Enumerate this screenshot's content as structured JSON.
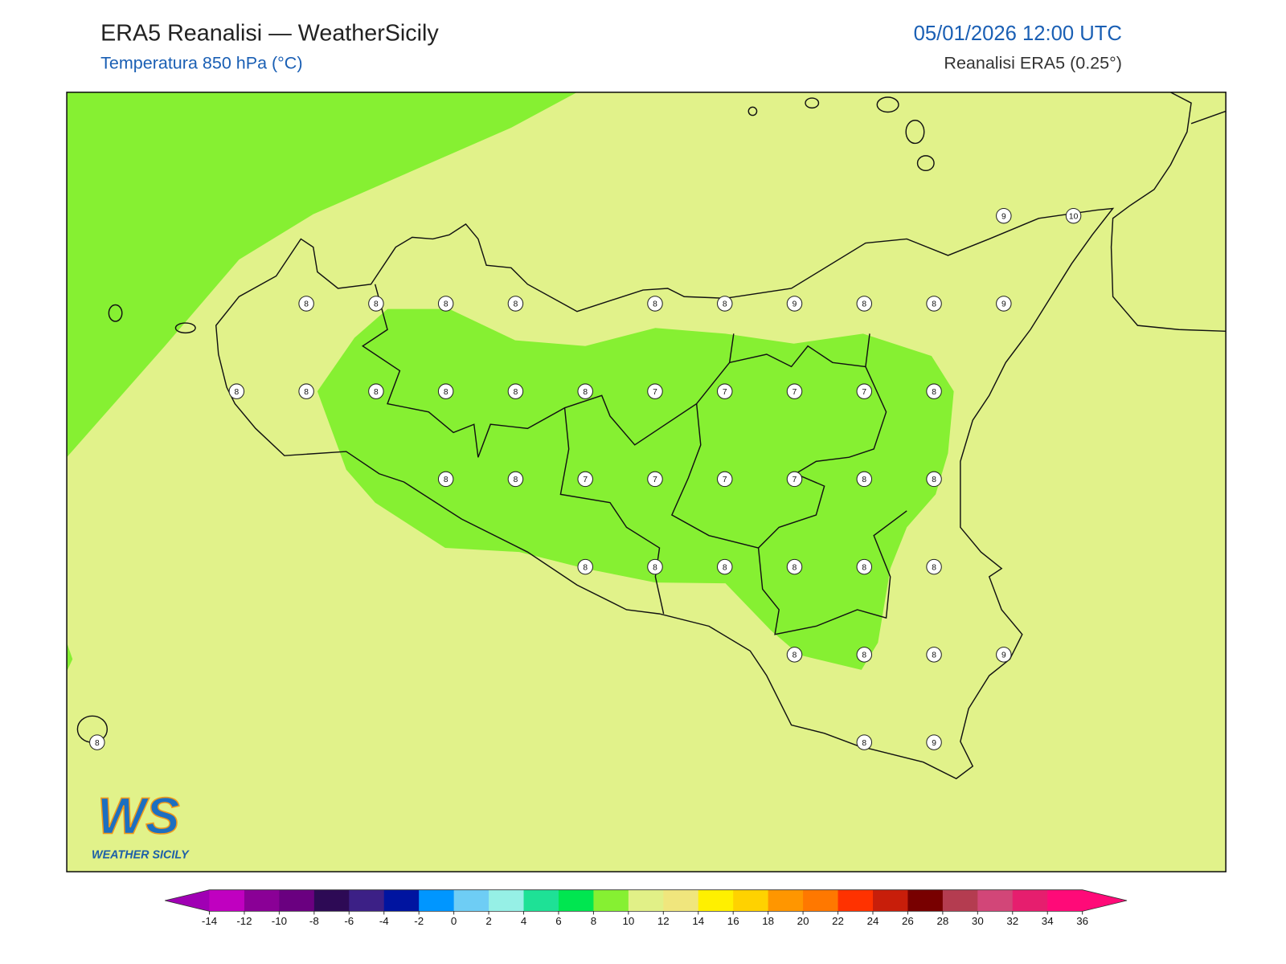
{
  "header": {
    "title": "ERA5 Reanalisi — WeatherSicily",
    "subtitle": "Temperatura 850 hPa (°C)",
    "datetime": "05/01/2026 12:00 UTC",
    "source": "Reanalisi ERA5 (0.25°)"
  },
  "logo": {
    "mark": "WS",
    "name": "WEATHER SICILY"
  },
  "point_values": [
    [
      null,
      null,
      null,
      null,
      null,
      null,
      null,
      null,
      null,
      null,
      null,
      null,
      null,
      9,
      10
    ],
    [
      null,
      null,
      null,
      8,
      8,
      8,
      8,
      null,
      8,
      8,
      9,
      8,
      8,
      9,
      null
    ],
    [
      null,
      null,
      8,
      8,
      8,
      8,
      8,
      8,
      7,
      7,
      7,
      7,
      8,
      null,
      null
    ],
    [
      null,
      null,
      null,
      null,
      null,
      8,
      8,
      7,
      7,
      7,
      7,
      8,
      8,
      null,
      null
    ],
    [
      null,
      null,
      null,
      null,
      null,
      null,
      null,
      8,
      8,
      8,
      8,
      8,
      8,
      null,
      null
    ],
    [
      null,
      null,
      null,
      null,
      null,
      null,
      null,
      null,
      null,
      null,
      8,
      8,
      8,
      9,
      null
    ],
    [
      8,
      null,
      null,
      null,
      null,
      null,
      null,
      null,
      null,
      null,
      null,
      8,
      9,
      null,
      null
    ]
  ],
  "colorbar": {
    "ticks": [
      -14,
      -12,
      -10,
      -8,
      -6,
      -4,
      -2,
      0,
      2,
      4,
      6,
      8,
      10,
      12,
      14,
      16,
      18,
      20,
      22,
      24,
      26,
      28,
      30,
      32,
      34,
      36
    ],
    "colors": [
      "#c000c0",
      "#8a0096",
      "#6a0080",
      "#2d0a55",
      "#3c2086",
      "#0014a0",
      "#0096ff",
      "#6ecdf5",
      "#96f0e6",
      "#1ee196",
      "#00e650",
      "#86f032",
      "#e1f087",
      "#f0e67d",
      "#fff000",
      "#ffd200",
      "#ff9600",
      "#ff7800",
      "#ff3200",
      "#c81e0a",
      "#780000",
      "#b43c50",
      "#d24678",
      "#e61e6e",
      "#ff0a78"
    ],
    "under_color": "#a000b4",
    "over_color": "#ff0a78"
  }
}
